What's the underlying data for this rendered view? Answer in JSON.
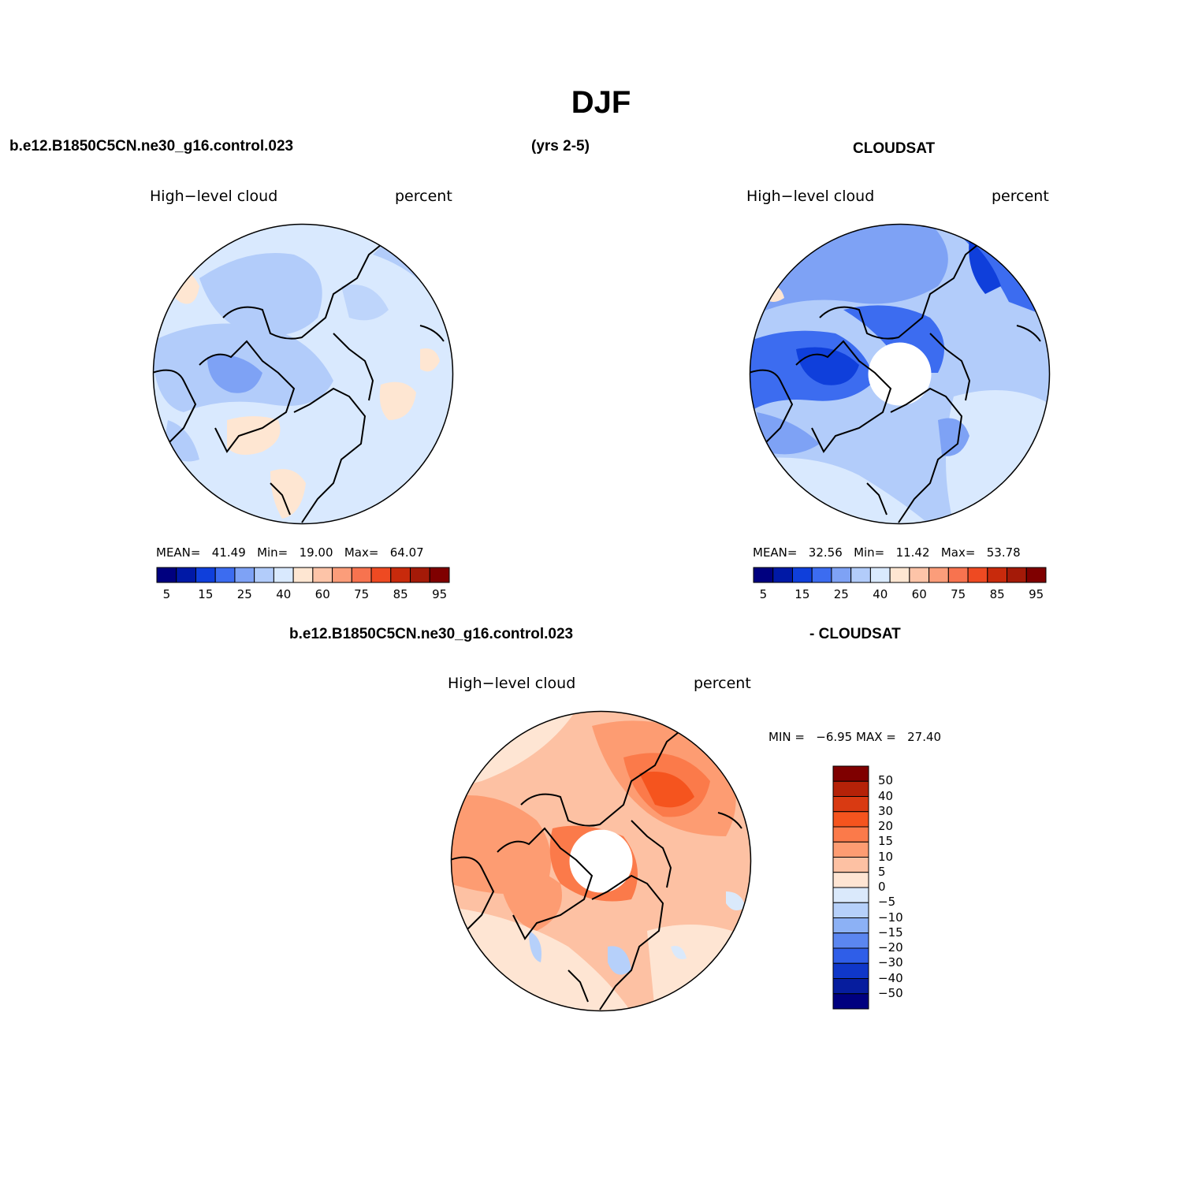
{
  "title": "DJF",
  "header": {
    "model_case": "b.e12.B1850C5CN.ne30_g16.control.023",
    "years": "(yrs 2-5)",
    "obs": "CLOUDSAT",
    "diff_case": "b.e12.B1850C5CN.ne30_g16.control.023",
    "diff_obs": "- CLOUDSAT"
  },
  "panels": [
    {
      "variable": "High−level cloud",
      "units": "percent",
      "mean_label": "MEAN=",
      "mean": "41.49",
      "min_label": "Min=",
      "min": "19.00",
      "max_label": "Max=",
      "max": "64.07",
      "colorbar_ticks": [
        "5",
        "15",
        "25",
        "40",
        "60",
        "75",
        "85",
        "95"
      ]
    },
    {
      "variable": "High−level cloud",
      "units": "percent",
      "mean_label": "MEAN=",
      "mean": "32.56",
      "min_label": "Min=",
      "min": "11.42",
      "max_label": "Max=",
      "max": "53.78",
      "colorbar_ticks": [
        "5",
        "15",
        "25",
        "40",
        "60",
        "75",
        "85",
        "95"
      ]
    },
    {
      "variable": "High−level cloud",
      "units": "percent",
      "min_label": "MIN =",
      "min": "−6.95",
      "max_label": "MAX =",
      "max": "27.40",
      "colorbar_ticks": [
        "50",
        "40",
        "30",
        "20",
        "15",
        "10",
        "5",
        "0",
        "−5",
        "−10",
        "−15",
        "−20",
        "−30",
        "−40",
        "−50"
      ]
    }
  ],
  "colors": {
    "abs_scale": [
      "#00007f",
      "#0019a6",
      "#0f3fdb",
      "#3c6cf0",
      "#7ea2f5",
      "#b2ccfa",
      "#d9e9fe",
      "#fee6d2",
      "#fdc4a8",
      "#fb9d7a",
      "#f7734f",
      "#ee4a22",
      "#c82a0c",
      "#a41a08",
      "#7f0000"
    ],
    "diff_scale": [
      "#7f0000",
      "#b52208",
      "#d93a12",
      "#f5541e",
      "#fb7a4a",
      "#fd9c72",
      "#fdc1a3",
      "#fee5d3",
      "#dae9fb",
      "#b6d0fa",
      "#8cb1f5",
      "#5b86f0",
      "#2f5ee8",
      "#0f37c9",
      "#061d9e",
      "#00007f"
    ]
  }
}
